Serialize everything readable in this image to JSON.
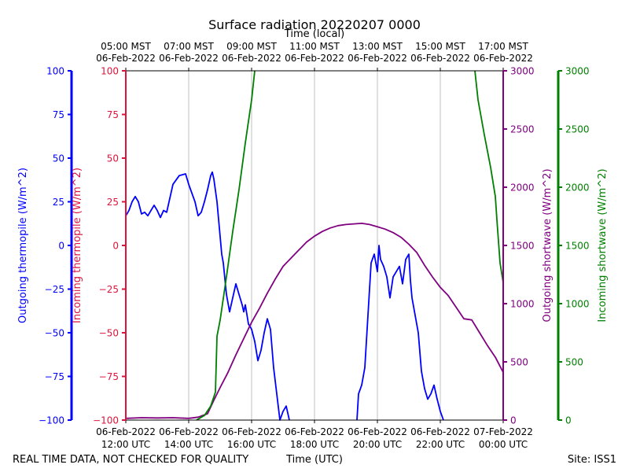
{
  "chart_data": {
    "type": "line",
    "title": "Surface radiation 20220207 0000",
    "top_xlabel": "Time (local)",
    "xlabel": "Time (UTC)",
    "footer_left": "REAL TIME DATA, NOT CHECKED FOR QUALITY",
    "footer_right": "Site: ISS1",
    "x_range_utc": [
      "06-Feb-2022 12:00",
      "07-Feb-2022 00:00"
    ],
    "bottom_ticks": [
      {
        "date": "06-Feb-2022",
        "time": "12:00 UTC"
      },
      {
        "date": "06-Feb-2022",
        "time": "14:00 UTC"
      },
      {
        "date": "06-Feb-2022",
        "time": "16:00 UTC"
      },
      {
        "date": "06-Feb-2022",
        "time": "18:00 UTC"
      },
      {
        "date": "06-Feb-2022",
        "time": "20:00 UTC"
      },
      {
        "date": "06-Feb-2022",
        "time": "22:00 UTC"
      },
      {
        "date": "07-Feb-2022",
        "time": "00:00 UTC"
      }
    ],
    "top_ticks": [
      {
        "time": "05:00 MST",
        "date": "06-Feb-2022"
      },
      {
        "time": "07:00 MST",
        "date": "06-Feb-2022"
      },
      {
        "time": "09:00 MST",
        "date": "06-Feb-2022"
      },
      {
        "time": "11:00 MST",
        "date": "06-Feb-2022"
      },
      {
        "time": "13:00 MST",
        "date": "06-Feb-2022"
      },
      {
        "time": "15:00 MST",
        "date": "06-Feb-2022"
      },
      {
        "time": "17:00 MST",
        "date": "06-Feb-2022"
      }
    ],
    "grid": "vertical",
    "axes": {
      "outgoing_thermopile": {
        "label": "Outgoing thermopile (W/m^2)",
        "ylim": [
          -100,
          100
        ],
        "ticks": [
          -100,
          -75,
          -50,
          -25,
          0,
          25,
          50,
          75,
          100
        ],
        "color": "#0000ff"
      },
      "incoming_thermopile": {
        "label": "Incoming thermopile (W/m^2)",
        "ylim": [
          -100,
          100
        ],
        "ticks": [
          -100,
          -75,
          -50,
          -25,
          0,
          25,
          50,
          75,
          100
        ],
        "color": "#dc143c"
      },
      "outgoing_shortwave": {
        "label": "Outgoing shortwave (W/m^2)",
        "ylim": [
          0,
          3000
        ],
        "ticks": [
          0,
          500,
          1000,
          1500,
          2000,
          2500,
          3000
        ],
        "color": "#800080"
      },
      "incoming_shortwave": {
        "label": "Incoming shortwave (W/m^2)",
        "ylim": [
          0,
          3000
        ],
        "ticks": [
          0,
          500,
          1000,
          1500,
          2000,
          2500,
          3000
        ],
        "color": "#008000"
      }
    },
    "series": [
      {
        "axis": "outgoing_thermopile",
        "color": "#0000ff",
        "x_hours_utc": [
          12.0,
          12.1,
          12.2,
          12.3,
          12.4,
          12.5,
          12.6,
          12.7,
          12.8,
          12.9,
          13.0,
          13.1,
          13.2,
          13.3,
          13.5,
          13.7,
          13.9,
          14.0,
          14.1,
          14.2,
          14.3,
          14.4,
          14.5,
          14.6,
          14.7,
          14.75,
          14.8,
          14.9,
          15.0,
          15.05,
          15.1,
          15.2,
          15.3,
          15.4,
          15.5,
          15.6,
          15.7,
          15.75,
          15.8,
          15.9,
          16.0,
          16.1,
          16.2,
          16.3,
          16.4,
          16.5,
          16.6,
          16.7,
          16.8,
          16.9,
          17.0,
          17.1,
          17.2,
          17.3,
          17.4,
          17.5,
          17.6,
          17.7,
          17.8,
          17.9,
          18.0,
          18.05
        ],
        "y": [
          17,
          20,
          25,
          28,
          25,
          18,
          19,
          17,
          20,
          23,
          20,
          16,
          20,
          19,
          35,
          40,
          41,
          35,
          30,
          25,
          17,
          19,
          25,
          32,
          40,
          42,
          38,
          25,
          5,
          -5,
          -10,
          -28,
          -38,
          -30,
          -22,
          -28,
          -34,
          -38,
          -34,
          -45,
          -48,
          -55,
          -66,
          -60,
          -50,
          -42,
          -48,
          -70,
          -85,
          -100,
          -95,
          -92,
          -100,
          null,
          null,
          null,
          null,
          null,
          null,
          null,
          null,
          null
        ]
      },
      {
        "axis": "outgoing_thermopile",
        "color": "#0000ff",
        "x_hours_utc": [
          19.35,
          19.4,
          19.5,
          19.6,
          19.7,
          19.8,
          19.9,
          20.0,
          20.05,
          20.1,
          20.2,
          20.3,
          20.4,
          20.5,
          20.6,
          20.7,
          20.8,
          20.9,
          21.0,
          21.05,
          21.1,
          21.2,
          21.3,
          21.4,
          21.5,
          21.6,
          21.7,
          21.8,
          21.9,
          22.0,
          22.1,
          22.2,
          22.3
        ],
        "y": [
          -100,
          -85,
          -80,
          -70,
          -40,
          -10,
          -5,
          -15,
          0,
          -8,
          -12,
          -18,
          -30,
          -18,
          -15,
          -12,
          -22,
          -8,
          -5,
          -20,
          -30,
          -40,
          -50,
          -72,
          -82,
          -88,
          -85,
          -80,
          -88,
          -95,
          -100,
          null,
          null
        ]
      },
      {
        "axis": "incoming_thermopile",
        "color": "#dc143c",
        "x_hours_utc": [],
        "y": []
      },
      {
        "axis": "outgoing_shortwave",
        "color": "#800080",
        "x_hours_utc": [
          12.0,
          12.5,
          13.0,
          13.5,
          14.0,
          14.3,
          14.6,
          14.8,
          15.0,
          15.25,
          15.5,
          15.75,
          16.0,
          16.25,
          16.5,
          16.75,
          17.0,
          17.25,
          17.5,
          17.75,
          18.0,
          18.25,
          18.5,
          18.75,
          19.0,
          19.25,
          19.5,
          19.75,
          20.0,
          20.25,
          20.5,
          20.75,
          21.0,
          21.25,
          21.5,
          21.75,
          22.0,
          22.25,
          22.5,
          22.75,
          23.0,
          23.25,
          23.5,
          23.75,
          24.0
        ],
        "y": [
          15,
          20,
          18,
          20,
          15,
          25,
          55,
          170,
          280,
          410,
          560,
          700,
          840,
          960,
          1090,
          1210,
          1320,
          1390,
          1460,
          1530,
          1580,
          1620,
          1650,
          1670,
          1680,
          1685,
          1690,
          1680,
          1660,
          1640,
          1610,
          1570,
          1510,
          1440,
          1330,
          1230,
          1140,
          1070,
          970,
          870,
          860,
          750,
          640,
          540,
          410
        ]
      },
      {
        "axis": "incoming_shortwave",
        "color": "#008000",
        "x_hours_utc": [
          14.25,
          14.5,
          14.7,
          14.85,
          14.9,
          15.0,
          15.2,
          15.4,
          15.6,
          15.8,
          16.0,
          16.1
        ],
        "y": [
          0,
          40,
          120,
          240,
          720,
          860,
          1230,
          1620,
          1980,
          2380,
          2750,
          3000
        ]
      },
      {
        "axis": "incoming_shortwave",
        "color": "#008000",
        "x_hours_utc": [
          23.1,
          23.2,
          23.4,
          23.6,
          23.75,
          23.8,
          23.9,
          24.0
        ],
        "y": [
          3000,
          2750,
          2450,
          2170,
          1920,
          1720,
          1350,
          1180
        ]
      }
    ]
  }
}
